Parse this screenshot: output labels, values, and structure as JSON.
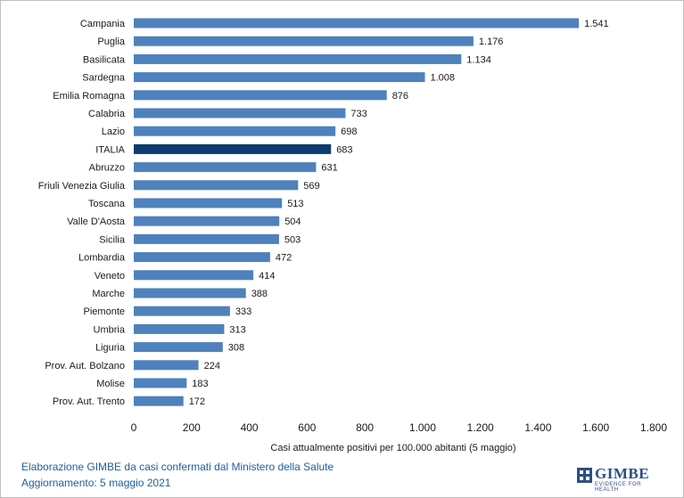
{
  "chart_data": {
    "type": "bar",
    "orientation": "horizontal",
    "categories": [
      "Campania",
      "Puglia",
      "Basilicata",
      "Sardegna",
      "Emilia Romagna",
      "Calabria",
      "Lazio",
      "ITALIA",
      "Abruzzo",
      "Friuli Venezia Giulia",
      "Toscana",
      "Valle D'Aosta",
      "Sicilia",
      "Lombardia",
      "Veneto",
      "Marche",
      "Piemonte",
      "Umbria",
      "Liguria",
      "Prov. Aut. Bolzano",
      "Molise",
      "Prov. Aut. Trento"
    ],
    "values": [
      1541,
      1176,
      1134,
      1008,
      876,
      733,
      698,
      683,
      631,
      569,
      513,
      504,
      503,
      472,
      414,
      388,
      333,
      313,
      308,
      224,
      183,
      172
    ],
    "value_labels": [
      "1.541",
      "1.176",
      "1.134",
      "1.008",
      "876",
      "733",
      "698",
      "683",
      "631",
      "569",
      "513",
      "504",
      "503",
      "472",
      "414",
      "388",
      "333",
      "313",
      "308",
      "224",
      "183",
      "172"
    ],
    "highlight_category": "ITALIA",
    "xlim": [
      0,
      1800
    ],
    "xticks": [
      0,
      200,
      400,
      600,
      800,
      1000,
      1200,
      1400,
      1600,
      1800
    ],
    "xtick_labels": [
      "0",
      "200",
      "400",
      "600",
      "800",
      "1.000",
      "1.200",
      "1.400",
      "1.600",
      "1.800"
    ],
    "xlabel": "Casi attualmente positivi per 100.000 abitanti (5 maggio)",
    "grid": false,
    "colors": {
      "bar": "#4f81bd",
      "highlight": "#0d3c6e"
    }
  },
  "footer": {
    "line1": "Elaborazione GIMBE da casi confermati dal Ministero della Salute",
    "line2": "Aggiornamento: 5 maggio 2021"
  },
  "logo": {
    "name": "GIMBE",
    "tagline": "EVIDENCE FOR HEALTH"
  }
}
